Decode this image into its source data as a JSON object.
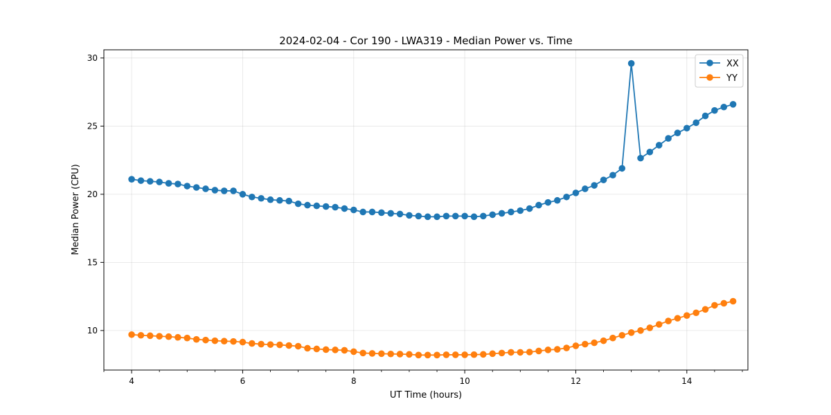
{
  "chart_data": {
    "type": "line",
    "title": "2024-02-04 - Cor 190 - LWA319 - Median Power vs. Time",
    "xlabel": "UT Time (hours)",
    "ylabel": "Median Power (CPU)",
    "xlim": [
      3.5,
      15.1
    ],
    "ylim": [
      7.1,
      30.6
    ],
    "xticks": [
      4,
      6,
      8,
      10,
      12,
      14
    ],
    "yticks": [
      10,
      15,
      20,
      25,
      30
    ],
    "grid": true,
    "legend_position": "top-right",
    "x": [
      4.0,
      4.167,
      4.333,
      4.5,
      4.667,
      4.833,
      5.0,
      5.167,
      5.333,
      5.5,
      5.667,
      5.833,
      6.0,
      6.167,
      6.333,
      6.5,
      6.667,
      6.833,
      7.0,
      7.167,
      7.333,
      7.5,
      7.667,
      7.833,
      8.0,
      8.167,
      8.333,
      8.5,
      8.667,
      8.833,
      9.0,
      9.167,
      9.333,
      9.5,
      9.667,
      9.833,
      10.0,
      10.167,
      10.333,
      10.5,
      10.667,
      10.833,
      11.0,
      11.167,
      11.333,
      11.5,
      11.667,
      11.833,
      12.0,
      12.167,
      12.333,
      12.5,
      12.667,
      12.833,
      13.0,
      13.167,
      13.333,
      13.5,
      13.667,
      13.833,
      14.0,
      14.167,
      14.333,
      14.5,
      14.667,
      14.833
    ],
    "series": [
      {
        "name": "XX",
        "color": "#1f77b4",
        "values": [
          21.1,
          21.0,
          20.95,
          20.9,
          20.8,
          20.75,
          20.6,
          20.5,
          20.4,
          20.3,
          20.25,
          20.25,
          20.0,
          19.8,
          19.7,
          19.6,
          19.55,
          19.5,
          19.3,
          19.2,
          19.15,
          19.1,
          19.05,
          18.95,
          18.85,
          18.7,
          18.7,
          18.65,
          18.6,
          18.55,
          18.45,
          18.4,
          18.35,
          18.35,
          18.4,
          18.4,
          18.4,
          18.35,
          18.4,
          18.5,
          18.6,
          18.7,
          18.8,
          18.95,
          19.2,
          19.4,
          19.55,
          19.8,
          20.1,
          20.4,
          20.65,
          21.05,
          21.4,
          21.9,
          29.6,
          22.65,
          23.1,
          23.6,
          24.1,
          24.5,
          24.85,
          25.25,
          25.75,
          26.15,
          26.4,
          26.6
        ]
      },
      {
        "name": "YY",
        "color": "#ff7f0e",
        "values": [
          9.7,
          9.65,
          9.62,
          9.58,
          9.55,
          9.5,
          9.45,
          9.35,
          9.3,
          9.25,
          9.22,
          9.2,
          9.15,
          9.05,
          9.0,
          8.97,
          8.95,
          8.9,
          8.85,
          8.7,
          8.65,
          8.6,
          8.58,
          8.55,
          8.45,
          8.35,
          8.32,
          8.3,
          8.28,
          8.27,
          8.25,
          8.2,
          8.2,
          8.2,
          8.22,
          8.22,
          8.22,
          8.23,
          8.25,
          8.3,
          8.35,
          8.4,
          8.4,
          8.42,
          8.5,
          8.58,
          8.62,
          8.72,
          8.88,
          9.0,
          9.1,
          9.25,
          9.45,
          9.65,
          9.85,
          10.0,
          10.2,
          10.45,
          10.7,
          10.9,
          11.1,
          11.3,
          11.55,
          11.85,
          12.0,
          12.15
        ]
      }
    ]
  }
}
